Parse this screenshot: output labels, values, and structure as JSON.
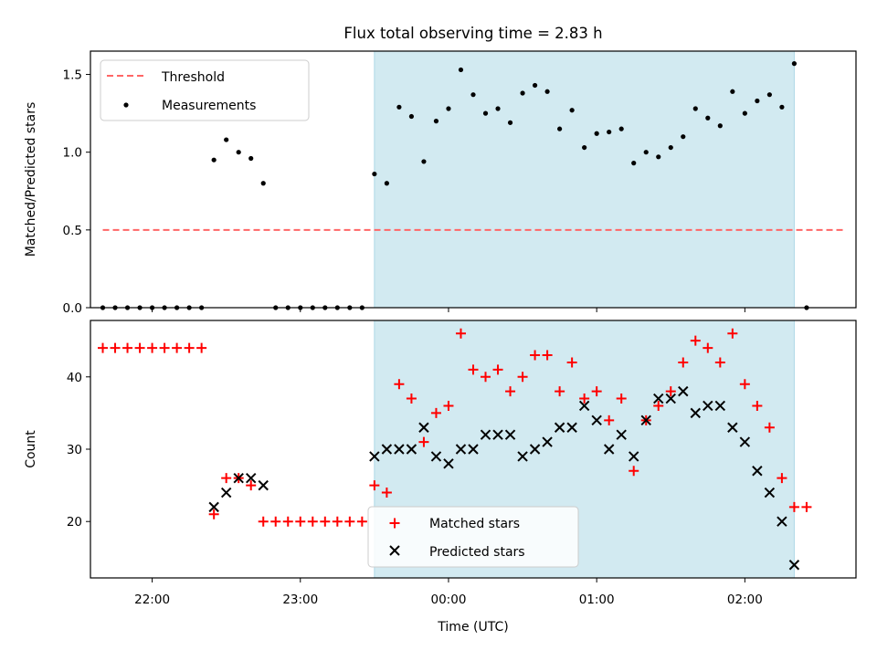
{
  "chart_data": [
    {
      "type": "scatter",
      "title": "Flux total observing time = 2.83 h",
      "xlabel": "",
      "ylabel": "Matched/Predicted stars",
      "xlim": [
        "21:35",
        "02:45"
      ],
      "ylim": [
        0,
        1.65
      ],
      "y_ticks": [
        "0.0",
        "0.5",
        "1.0",
        "1.5"
      ],
      "shaded_region": {
        "from": "23:30",
        "to": "02:20",
        "color": "#add8e6"
      },
      "legend": {
        "placement": "top-left",
        "entries": [
          "Threshold",
          "Measurements"
        ]
      },
      "threshold": {
        "name": "Threshold",
        "value": 0.5,
        "from": "21:40",
        "to": "02:40",
        "color": "#ff6666"
      },
      "series": [
        {
          "name": "Measurements",
          "color": "#000000",
          "x": [
            "21:40",
            "21:45",
            "21:50",
            "21:55",
            "22:00",
            "22:05",
            "22:10",
            "22:15",
            "22:20",
            "22:25",
            "22:30",
            "22:35",
            "22:40",
            "22:45",
            "22:50",
            "22:55",
            "23:00",
            "23:05",
            "23:10",
            "23:15",
            "23:20",
            "23:25",
            "23:30",
            "23:35",
            "23:40",
            "23:45",
            "23:50",
            "23:55",
            "00:00",
            "00:05",
            "00:10",
            "00:15",
            "00:20",
            "00:25",
            "00:30",
            "00:35",
            "00:40",
            "00:45",
            "00:50",
            "00:55",
            "01:00",
            "01:05",
            "01:10",
            "01:15",
            "01:20",
            "01:25",
            "01:30",
            "01:35",
            "01:40",
            "01:45",
            "01:50",
            "01:55",
            "02:00",
            "02:05",
            "02:10",
            "02:15",
            "02:20",
            "02:25"
          ],
          "y": [
            0,
            0,
            0,
            0,
            0,
            0,
            0,
            0,
            0,
            0.95,
            1.08,
            1.0,
            0.96,
            0.8,
            0,
            0,
            0,
            0,
            0,
            0,
            0,
            0,
            0.86,
            0.8,
            1.29,
            1.23,
            0.94,
            1.2,
            1.28,
            1.53,
            1.37,
            1.25,
            1.28,
            1.19,
            1.38,
            1.43,
            1.39,
            1.15,
            1.27,
            1.03,
            1.12,
            1.13,
            1.15,
            0.93,
            1.0,
            0.97,
            1.03,
            1.1,
            1.28,
            1.22,
            1.17,
            1.39,
            1.25,
            1.33,
            1.37,
            1.29,
            1.57,
            0
          ]
        }
      ]
    },
    {
      "type": "scatter",
      "title": "",
      "xlabel": "Time (UTC)",
      "ylabel": "Count",
      "xlim": [
        "21:35",
        "02:45"
      ],
      "ylim": [
        12.2,
        47.8
      ],
      "x_ticks": [
        "22:00",
        "23:00",
        "00:00",
        "01:00",
        "02:00"
      ],
      "y_ticks": [
        "20",
        "30",
        "40"
      ],
      "shaded_region": {
        "from": "23:30",
        "to": "02:20",
        "color": "#add8e6"
      },
      "legend": {
        "placement": "bottom-center",
        "entries": [
          "Matched stars",
          "Predicted stars"
        ]
      },
      "series": [
        {
          "name": "Matched stars",
          "marker": "plus",
          "color": "#ff0000",
          "x": [
            "21:40",
            "21:45",
            "21:50",
            "21:55",
            "22:00",
            "22:05",
            "22:10",
            "22:15",
            "22:20",
            "22:25",
            "22:30",
            "22:35",
            "22:40",
            "22:45",
            "22:50",
            "22:55",
            "23:00",
            "23:05",
            "23:10",
            "23:15",
            "23:20",
            "23:25",
            "23:30",
            "23:35",
            "23:40",
            "23:45",
            "23:50",
            "23:55",
            "00:00",
            "00:05",
            "00:10",
            "00:15",
            "00:20",
            "00:25",
            "00:30",
            "00:35",
            "00:40",
            "00:45",
            "00:50",
            "00:55",
            "01:00",
            "01:05",
            "01:10",
            "01:15",
            "01:20",
            "01:25",
            "01:30",
            "01:35",
            "01:40",
            "01:45",
            "01:50",
            "01:55",
            "02:00",
            "02:05",
            "02:10",
            "02:15",
            "02:20",
            "02:25"
          ],
          "y": [
            44,
            44,
            44,
            44,
            44,
            44,
            44,
            44,
            44,
            21,
            26,
            26,
            25,
            20,
            20,
            20,
            20,
            20,
            20,
            20,
            20,
            20,
            25,
            24,
            39,
            37,
            31,
            35,
            36,
            46,
            41,
            40,
            41,
            38,
            40,
            43,
            43,
            38,
            42,
            37,
            38,
            34,
            37,
            27,
            34,
            36,
            38,
            42,
            45,
            44,
            42,
            46,
            39,
            36,
            33,
            26,
            22,
            22
          ]
        },
        {
          "name": "Predicted stars",
          "marker": "x",
          "color": "#000000",
          "x": [
            "22:25",
            "22:30",
            "22:35",
            "22:40",
            "22:45",
            "23:30",
            "23:35",
            "23:40",
            "23:45",
            "23:50",
            "23:55",
            "00:00",
            "00:05",
            "00:10",
            "00:15",
            "00:20",
            "00:25",
            "00:30",
            "00:35",
            "00:40",
            "00:45",
            "00:50",
            "00:55",
            "01:00",
            "01:05",
            "01:10",
            "01:15",
            "01:20",
            "01:25",
            "01:30",
            "01:35",
            "01:40",
            "01:45",
            "01:50",
            "01:55",
            "02:00",
            "02:05",
            "02:10",
            "02:15",
            "02:20"
          ],
          "y": [
            22,
            24,
            26,
            26,
            25,
            29,
            30,
            30,
            30,
            33,
            29,
            28,
            30,
            30,
            32,
            32,
            32,
            29,
            30,
            31,
            33,
            33,
            36,
            34,
            30,
            32,
            29,
            34,
            37,
            37,
            38,
            35,
            36,
            36,
            33,
            31,
            27,
            24,
            20,
            14
          ]
        }
      ]
    }
  ]
}
